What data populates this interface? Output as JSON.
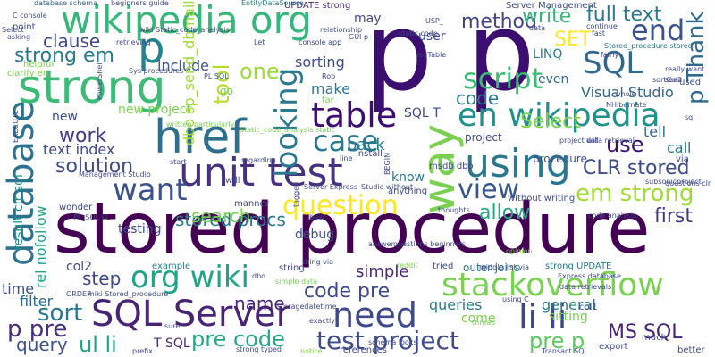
{
  "word_cloud": {
    "words": [
      {
        "text": "stored procedure",
        "color": "#440154"
      },
      {
        "text": "p p",
        "color": "#3b0f70"
      },
      {
        "text": "href",
        "color": "#2e6f8e"
      },
      {
        "text": "strong",
        "color": "#3bbb75"
      },
      {
        "text": "wikipedia org",
        "color": "#35b779"
      },
      {
        "text": "unit test",
        "color": "#46327e"
      },
      {
        "text": "en wikipedia",
        "color": "#21918c"
      },
      {
        "text": "using",
        "color": "#2a788e"
      },
      {
        "text": "SQL Server",
        "color": "#482475"
      },
      {
        "text": "table",
        "color": "#3b0f70"
      },
      {
        "text": "stackoverflow",
        "color": "#7ad151"
      },
      {
        "text": "database",
        "color": "#2c728e"
      },
      {
        "text": "need",
        "color": "#3e4a89"
      },
      {
        "text": "li li",
        "color": "#3f4788"
      },
      {
        "text": "org wiki",
        "color": "#20a486"
      },
      {
        "text": "way",
        "color": "#7ad151"
      },
      {
        "text": "case",
        "color": "#2a788e"
      },
      {
        "text": "script",
        "color": "#3bbb75"
      },
      {
        "text": "SQL",
        "color": "#31688e"
      },
      {
        "text": "want",
        "color": "#3b528b"
      },
      {
        "text": "view",
        "color": "#39568c"
      },
      {
        "text": "question",
        "color": "#fde725"
      },
      {
        "text": "end",
        "color": "#3b528b"
      },
      {
        "text": "p",
        "color": "#26828e"
      },
      {
        "text": "looking",
        "color": "#2a788e"
      },
      {
        "text": "code",
        "color": "#2a788e"
      },
      {
        "text": "em strong",
        "color": "#a0da39"
      },
      {
        "text": "CLR stored",
        "color": "#3e4a89"
      },
      {
        "text": "test project",
        "color": "#3e4a89"
      },
      {
        "text": "pre code",
        "color": "#22a884"
      },
      {
        "text": "code pre",
        "color": "#3e4a89"
      },
      {
        "text": "method",
        "color": "#414487"
      },
      {
        "text": "write",
        "color": "#35b779"
      },
      {
        "text": "full text",
        "color": "#2a788e"
      },
      {
        "text": "p Thank",
        "color": "#31688e"
      },
      {
        "text": "stored procs",
        "color": "#2a788e"
      },
      {
        "text": "solution",
        "color": "#3e4a89"
      },
      {
        "text": "work",
        "color": "#443983"
      },
      {
        "text": "search",
        "color": "#7ad151"
      },
      {
        "text": "use",
        "color": "#3b0f70"
      },
      {
        "text": "allow",
        "color": "#22a884"
      },
      {
        "text": "first",
        "color": "#453781"
      },
      {
        "text": "name",
        "color": "#482878"
      },
      {
        "text": "MS SQL",
        "color": "#482475"
      },
      {
        "text": "pre p",
        "color": "#5ec962"
      },
      {
        "text": "sort",
        "color": "#2a788e"
      },
      {
        "text": "p pre",
        "color": "#472d7b"
      },
      {
        "text": "ul li",
        "color": "#20a486"
      },
      {
        "text": "query",
        "color": "#3b528b"
      },
      {
        "text": "clause",
        "color": "#3e4a89"
      },
      {
        "text": "strong em",
        "color": "#2a788e"
      },
      {
        "text": "one",
        "color": "#a0da39"
      },
      {
        "text": "Select",
        "color": "#7ad151"
      },
      {
        "text": "SET",
        "color": "#fde725"
      },
      {
        "text": "make",
        "color": "#2a788e"
      },
      {
        "text": "text index",
        "color": "#3e4a89"
      },
      {
        "text": "tool",
        "color": "#b5de2b"
      },
      {
        "text": "sorting",
        "color": "#3e4a89"
      },
      {
        "text": "include",
        "color": "#3b528b"
      },
      {
        "text": "new project",
        "color": "#7ad151"
      },
      {
        "text": "Visual Studio",
        "color": "#31688e"
      },
      {
        "text": "LINQ",
        "color": "#2a788e"
      },
      {
        "text": "even",
        "color": "#31688e"
      },
      {
        "text": "simple",
        "color": "#482878"
      },
      {
        "text": "step",
        "color": "#3e4a89"
      },
      {
        "text": "filter",
        "color": "#31688e"
      },
      {
        "text": "time",
        "color": "#3b528b"
      },
      {
        "text": "queries",
        "color": "#2a788e"
      },
      {
        "text": "general",
        "color": "#2a788e"
      },
      {
        "text": "sitting",
        "color": "#7ad151"
      },
      {
        "text": "come",
        "color": "#7ad151"
      },
      {
        "text": "know",
        "color": "#2a788e"
      },
      {
        "text": "testing",
        "color": "#3e4a89"
      },
      {
        "text": "debug",
        "color": "#3b528b"
      },
      {
        "text": "new",
        "color": "#3e4a89"
      },
      {
        "text": "tell",
        "color": "#31688e"
      },
      {
        "text": "call",
        "color": "#2a788e"
      },
      {
        "text": "back",
        "color": "#2a788e"
      },
      {
        "text": "user",
        "color": "#3e4a89"
      },
      {
        "text": "may",
        "color": "#3e4a89"
      },
      {
        "text": "col2",
        "color": "#3e4a89"
      },
      {
        "text": "T SQL",
        "color": "#482878"
      },
      {
        "text": "dbo sp_send_dbmail",
        "color": "#a0da39"
      },
      {
        "text": "result clr sql",
        "color": "#21918c"
      },
      {
        "text": "rel nofollow",
        "color": "#20a486"
      },
      {
        "text": "SQL T",
        "color": "#3e4a89"
      },
      {
        "text": "UPDATE strong",
        "color": "#482878"
      },
      {
        "text": "Server Management",
        "color": "#3e4a89"
      },
      {
        "text": "database schema",
        "color": "#31688e"
      },
      {
        "text": "beginners guide",
        "color": "#3e4a89"
      },
      {
        "text": "EntityDataSource",
        "color": "#2a788e"
      },
      {
        "text": "Stored_procedure stored",
        "color": "#2a788e"
      },
      {
        "text": "really want",
        "color": "#3e4a89"
      },
      {
        "text": "seen",
        "color": "#3e4a89"
      },
      {
        "text": "clarify en",
        "color": "#7ad151"
      },
      {
        "text": "helpful",
        "color": "#7ad151"
      },
      {
        "text": "point",
        "color": "#3e4a89"
      },
      {
        "text": "C console",
        "color": "#3e4a89"
      },
      {
        "text": "PowerShell",
        "color": "#3e4a89"
      },
      {
        "text": "EXECUTE",
        "color": "#3e4a89"
      },
      {
        "text": "msdb dbo",
        "color": "#3e4a89"
      },
      {
        "text": "procedure",
        "color": "#3e4a89"
      },
      {
        "text": "install",
        "color": "#3e4a89"
      },
      {
        "text": "project",
        "color": "#3e4a89"
      },
      {
        "text": "without writing",
        "color": "#3e4a89"
      },
      {
        "text": "code analysis",
        "color": "#3e4a89"
      },
      {
        "text": "subsonicproject",
        "color": "#3e4a89"
      },
      {
        "text": "via",
        "color": "#3e4a89"
      },
      {
        "text": "Management Studio",
        "color": "#3e4a89"
      },
      {
        "text": "manner",
        "color": "#3e4a89"
      },
      {
        "text": "will",
        "color": "#3e4a89"
      },
      {
        "text": "wonder",
        "color": "#3e4a89"
      },
      {
        "text": "PL_SQL PL",
        "color": "#3e4a89"
      },
      {
        "text": "example",
        "color": "#2a788e"
      },
      {
        "text": "string",
        "color": "#3e4a89"
      },
      {
        "text": "thing via",
        "color": "#3e4a89"
      },
      {
        "text": "outer joins",
        "color": "#2a788e"
      },
      {
        "text": "strong UPDATE",
        "color": "#2a788e"
      },
      {
        "text": "Express database",
        "color": "#3e4a89"
      },
      {
        "text": "data retrievals",
        "color": "#3e4a89"
      },
      {
        "text": "col1",
        "color": "#3e4a89"
      },
      {
        "text": "using C",
        "color": "#3e4a89"
      },
      {
        "text": "much",
        "color": "#3e4a89"
      },
      {
        "text": "export",
        "color": "#3e4a89"
      },
      {
        "text": "better",
        "color": "#3e4a89"
      },
      {
        "text": "references",
        "color": "#3e4a89"
      },
      {
        "text": "Transact SQL",
        "color": "#3e4a89"
      },
      {
        "text": "questions beginners",
        "color": "#3e4a89"
      },
      {
        "text": "answer",
        "color": "#3e4a89"
      },
      {
        "text": "storagedatetime",
        "color": "#3e4a89"
      },
      {
        "text": "middle list via",
        "color": "#3e4a89"
      },
      {
        "text": "tried",
        "color": "#3e4a89"
      },
      {
        "text": "strong typed",
        "color": "#3e4a89"
      },
      {
        "text": "prefix",
        "color": "#3e4a89"
      },
      {
        "text": "exactly",
        "color": "#3e4a89"
      },
      {
        "text": "schema looks",
        "color": "#3e4a89"
      },
      {
        "text": "written particularly",
        "color": "#7ad151"
      },
      {
        "text": "miki Stored_procedure",
        "color": "#3e4a89"
      },
      {
        "text": "anything",
        "color": "#3e4a89"
      },
      {
        "text": "Studio without",
        "color": "#3e4a89"
      },
      {
        "text": "Server Express",
        "color": "#3e4a89"
      },
      {
        "text": "go",
        "color": "#7ad151"
      },
      {
        "text": "far",
        "color": "#7ad151"
      },
      {
        "text": "Let",
        "color": "#3e4a89"
      },
      {
        "text": "GUI p",
        "color": "#3e4a89"
      },
      {
        "text": "console app",
        "color": "#3e4a89"
      },
      {
        "text": "data",
        "color": "#3e4a89"
      },
      {
        "text": "continue",
        "color": "#3e4a89"
      },
      {
        "text": "fast",
        "color": "#3e4a89"
      },
      {
        "text": "sql",
        "color": "#3e4a89"
      },
      {
        "text": "used",
        "color": "#3e4a89"
      },
      {
        "text": "whole",
        "color": "#3e4a89"
      },
      {
        "text": "NHibernate",
        "color": "#3e4a89"
      },
      {
        "text": "thoughts",
        "color": "#3e4a89"
      },
      {
        "text": "reddit",
        "color": "#7ad151"
      },
      {
        "text": "opinion",
        "color": "#7ad151"
      },
      {
        "text": "bear",
        "color": "#3e4a89"
      },
      {
        "text": "thread",
        "color": "#7ad151"
      },
      {
        "text": "ORDER",
        "color": "#3e4a89"
      },
      {
        "text": "asking",
        "color": "#3e4a89"
      },
      {
        "text": "Sys procedures",
        "color": "#3e4a89"
      },
      {
        "text": "retrieving",
        "color": "#3e4a89"
      },
      {
        "text": "wiki Static_code_analysis",
        "color": "#3e4a89"
      },
      {
        "text": "PL SQL",
        "color": "#3e4a89"
      },
      {
        "text": "Static_code_analysis static",
        "color": "#7ad151"
      },
      {
        "text": "regarding",
        "color": "#3e4a89"
      },
      {
        "text": "start",
        "color": "#3e4a89"
      },
      {
        "text": "line",
        "color": "#3e4a89"
      },
      {
        "text": "BEGIN",
        "color": "#3e4a89"
      },
      {
        "text": "tagged",
        "color": "#3e4a89"
      },
      {
        "text": "questions clr",
        "color": "#3e4a89"
      },
      {
        "text": "Rob",
        "color": "#3e4a89"
      },
      {
        "text": "relationship",
        "color": "#3e4a89"
      },
      {
        "text": "static code",
        "color": "#3e4a89"
      },
      {
        "text": "myTable",
        "color": "#3e4a89"
      },
      {
        "text": "sortCol2",
        "color": "#3e4a89"
      },
      {
        "text": "project will",
        "color": "#3e4a89"
      },
      {
        "text": "data retrieval",
        "color": "#3e4a89"
      },
      {
        "text": "Select",
        "color": "#3e4a89"
      },
      {
        "text": "sure",
        "color": "#3e4a89"
      },
      {
        "text": "notice",
        "color": "#7ad151"
      },
      {
        "text": "simple data",
        "color": "#7ad151"
      },
      {
        "text": "dbo",
        "color": "#3e4a89"
      },
      {
        "text": "USP_",
        "color": "#3e4a89"
      },
      {
        "text": "fairly",
        "color": "#3e4a89"
      }
    ]
  }
}
